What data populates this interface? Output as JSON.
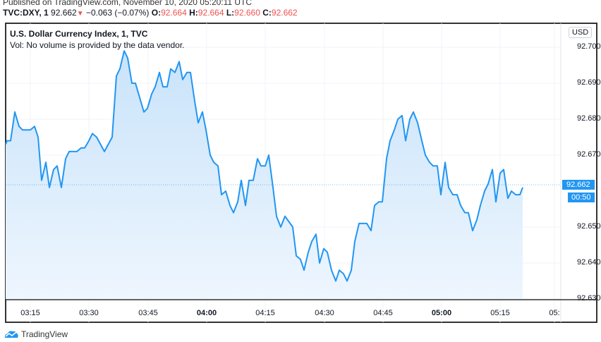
{
  "header": {
    "published": "Published on TradingView.com, November 10, 2020 05:20:11 UTC",
    "symbol": "TVC:DXY, 1",
    "last": "92.662",
    "change": "−0.063 (−0.07%)",
    "change_direction_icon": "triangle-down-icon",
    "ohlc": {
      "o_label": "O:",
      "o": "92.664",
      "h_label": "H:",
      "h": "92.664",
      "l_label": "L:",
      "l": "92.660",
      "c_label": "C:",
      "c": "92.662"
    }
  },
  "chart": {
    "title": "U.S. Dollar Currency Index, 1, TVC",
    "volume_note": "Vol: No volume is provided by the data vendor.",
    "currency": "USD",
    "price_tag": "92.662",
    "countdown_tag": "00:50",
    "colors": {
      "line": "#2196f3",
      "fill_top": "#cfe6fb",
      "fill_bottom": "#eef6fe",
      "down": "#ef5350",
      "grid": "#f0f3fa"
    }
  },
  "footer": {
    "brand": "TradingView"
  },
  "chart_data": {
    "type": "area",
    "title": "U.S. Dollar Currency Index, 1, TVC",
    "xlabel": "",
    "ylabel": "USD",
    "ylim": [
      92.628,
      92.703
    ],
    "grid": true,
    "legend": "none",
    "y_ticks": [
      "92.700",
      "92.690",
      "92.680",
      "92.670",
      "92.650",
      "92.640",
      "92.630"
    ],
    "x_ticks": [
      "03:15",
      "03:30",
      "03:45",
      "04:00",
      "04:15",
      "04:30",
      "04:45",
      "05:00",
      "05:15",
      "05:"
    ],
    "last_price": 92.662,
    "series": [
      {
        "name": "DXY",
        "points": [
          [
            8,
            92.673
          ],
          [
            10,
            92.674
          ],
          [
            15,
            92.674
          ],
          [
            21,
            92.682
          ],
          [
            27,
            92.678
          ],
          [
            32,
            92.677
          ],
          [
            43,
            92.677
          ],
          [
            49,
            92.678
          ],
          [
            54,
            92.675
          ],
          [
            59,
            92.663
          ],
          [
            65,
            92.668
          ],
          [
            70,
            92.661
          ],
          [
            76,
            92.666
          ],
          [
            81,
            92.667
          ],
          [
            87,
            92.661
          ],
          [
            93,
            92.669
          ],
          [
            98,
            92.671
          ],
          [
            109,
            92.671
          ],
          [
            115,
            92.672
          ],
          [
            120,
            92.672
          ],
          [
            126,
            92.674
          ],
          [
            131,
            92.676
          ],
          [
            137,
            92.675
          ],
          [
            148,
            92.671
          ],
          [
            159,
            92.675
          ],
          [
            165,
            92.692
          ],
          [
            170,
            92.694
          ],
          [
            176,
            92.699
          ],
          [
            181,
            92.697
          ],
          [
            187,
            92.69
          ],
          [
            192,
            92.69
          ],
          [
            204,
            92.682
          ],
          [
            209,
            92.683
          ],
          [
            215,
            92.687
          ],
          [
            220,
            92.689
          ],
          [
            226,
            92.693
          ],
          [
            231,
            92.689
          ],
          [
            237,
            92.689
          ],
          [
            242,
            92.694
          ],
          [
            248,
            92.693
          ],
          [
            254,
            92.696
          ],
          [
            259,
            92.691
          ],
          [
            265,
            92.693
          ],
          [
            270,
            92.693
          ],
          [
            276,
            92.685
          ],
          [
            281,
            92.679
          ],
          [
            287,
            92.682
          ],
          [
            292,
            92.677
          ],
          [
            298,
            92.67
          ],
          [
            303,
            92.668
          ],
          [
            309,
            92.667
          ],
          [
            314,
            92.659
          ],
          [
            320,
            92.66
          ],
          [
            326,
            92.656
          ],
          [
            331,
            92.654
          ],
          [
            337,
            92.657
          ],
          [
            342,
            92.663
          ],
          [
            348,
            92.656
          ],
          [
            353,
            92.663
          ],
          [
            359,
            92.663
          ],
          [
            365,
            92.669
          ],
          [
            370,
            92.667
          ],
          [
            376,
            92.667
          ],
          [
            381,
            92.67
          ],
          [
            387,
            92.661
          ],
          [
            392,
            92.653
          ],
          [
            398,
            92.65
          ],
          [
            404,
            92.653
          ],
          [
            415,
            92.65
          ],
          [
            420,
            92.642
          ],
          [
            426,
            92.641
          ],
          [
            431,
            92.638
          ],
          [
            437,
            92.643
          ],
          [
            442,
            92.646
          ],
          [
            448,
            92.648
          ],
          [
            453,
            92.64
          ],
          [
            459,
            92.644
          ],
          [
            464,
            92.643
          ],
          [
            470,
            92.638
          ],
          [
            476,
            92.635
          ],
          [
            481,
            92.638
          ],
          [
            487,
            92.637
          ],
          [
            492,
            92.635
          ],
          [
            498,
            92.638
          ],
          [
            503,
            92.646
          ],
          [
            509,
            92.651
          ],
          [
            520,
            92.651
          ],
          [
            526,
            92.649
          ],
          [
            531,
            92.656
          ],
          [
            537,
            92.657
          ],
          [
            542,
            92.657
          ],
          [
            548,
            92.669
          ],
          [
            553,
            92.674
          ],
          [
            559,
            92.677
          ],
          [
            564,
            92.68
          ],
          [
            570,
            92.681
          ],
          [
            575,
            92.674
          ],
          [
            581,
            92.68
          ],
          [
            586,
            92.682
          ],
          [
            592,
            92.679
          ],
          [
            598,
            92.674
          ],
          [
            603,
            92.67
          ],
          [
            609,
            92.668
          ],
          [
            614,
            92.667
          ],
          [
            620,
            92.667
          ],
          [
            625,
            92.659
          ],
          [
            631,
            92.668
          ],
          [
            636,
            92.661
          ],
          [
            642,
            92.659
          ],
          [
            648,
            92.659
          ],
          [
            653,
            92.656
          ],
          [
            659,
            92.654
          ],
          [
            664,
            92.654
          ],
          [
            670,
            92.649
          ],
          [
            676,
            92.652
          ],
          [
            681,
            92.656
          ],
          [
            687,
            92.66
          ],
          [
            692,
            92.662
          ],
          [
            698,
            92.666
          ],
          [
            703,
            92.657
          ],
          [
            709,
            92.665
          ],
          [
            714,
            92.666
          ],
          [
            720,
            92.658
          ],
          [
            725,
            92.66
          ],
          [
            731,
            92.659
          ],
          [
            737,
            92.659
          ],
          [
            741,
            92.661
          ]
        ]
      }
    ]
  }
}
